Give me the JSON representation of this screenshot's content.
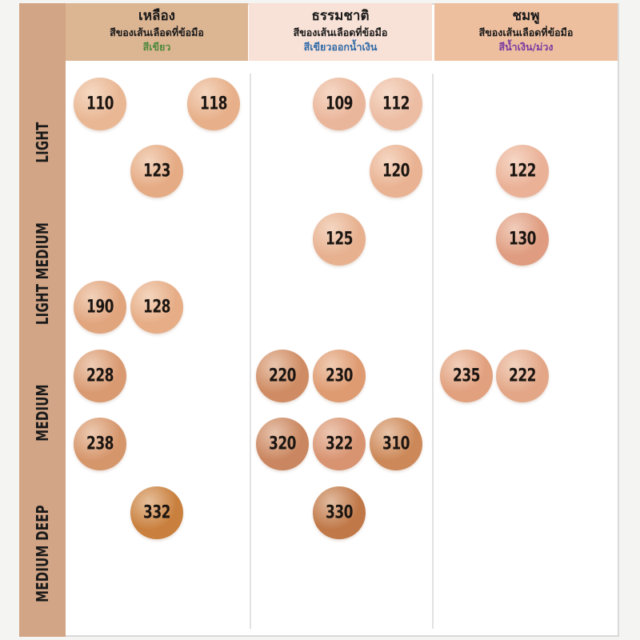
{
  "columns": [
    {
      "id": "yellow",
      "title": "เหลือง",
      "subtitle": "สีของเส้นเลือดที่ข้อมือ",
      "vein": "สีเขียว",
      "bg": "#dcb593",
      "vein_color": "#4e8a3c"
    },
    {
      "id": "neutral",
      "title": "ธรรมชาติ",
      "subtitle": "สีของเส้นเลือดที่ข้อมือ",
      "vein": "สีเขียวออกน้ำเงิน",
      "bg": "#f8e1d6",
      "vein_color": "#2f6aa8"
    },
    {
      "id": "pink",
      "title": "ชมพู",
      "subtitle": "สีของเส้นเลือดที่ข้อมือ",
      "vein": "สีน้ำเงิน/ม่วง",
      "bg": "#eebf9f",
      "vein_color": "#7a3aa0"
    }
  ],
  "rows": [
    {
      "label": "LIGHT"
    },
    {
      "label": "LIGHT MEDIUM"
    },
    {
      "label": "MEDIUM"
    },
    {
      "label": "MEDIUM DEEP"
    }
  ],
  "shades": [
    {
      "code": "110",
      "column": "yellow",
      "tone": "light",
      "color": "#e9b794"
    },
    {
      "code": "118",
      "column": "yellow",
      "tone": "light",
      "color": "#e7b08a"
    },
    {
      "code": "123",
      "column": "yellow",
      "tone": "light",
      "color": "#e5ab84"
    },
    {
      "code": "190",
      "column": "yellow",
      "tone": "light medium",
      "color": "#e1a57e"
    },
    {
      "code": "128",
      "column": "yellow",
      "tone": "light medium",
      "color": "#e6ad86"
    },
    {
      "code": "228",
      "column": "yellow",
      "tone": "medium",
      "color": "#d99a72"
    },
    {
      "code": "238",
      "column": "yellow",
      "tone": "medium",
      "color": "#d6966c"
    },
    {
      "code": "332",
      "column": "yellow",
      "tone": "medium deep",
      "color": "#c9803e"
    },
    {
      "code": "109",
      "column": "neutral",
      "tone": "light",
      "color": "#eab69b"
    },
    {
      "code": "112",
      "column": "neutral",
      "tone": "light",
      "color": "#ecbda3"
    },
    {
      "code": "120",
      "column": "neutral",
      "tone": "light",
      "color": "#e9b292"
    },
    {
      "code": "125",
      "column": "neutral",
      "tone": "light medium",
      "color": "#e7b190"
    },
    {
      "code": "220",
      "column": "neutral",
      "tone": "medium",
      "color": "#cf8c64"
    },
    {
      "code": "230",
      "column": "neutral",
      "tone": "medium",
      "color": "#de9a70"
    },
    {
      "code": "320",
      "column": "neutral",
      "tone": "medium",
      "color": "#ca8660"
    },
    {
      "code": "322",
      "column": "neutral",
      "tone": "medium",
      "color": "#d89371"
    },
    {
      "code": "310",
      "column": "neutral",
      "tone": "medium",
      "color": "#cc8858"
    },
    {
      "code": "330",
      "column": "neutral",
      "tone": "medium deep",
      "color": "#c07848"
    },
    {
      "code": "122",
      "column": "pink",
      "tone": "light",
      "color": "#eab197"
    },
    {
      "code": "130",
      "column": "pink",
      "tone": "light medium",
      "color": "#df9c80"
    },
    {
      "code": "235",
      "column": "pink",
      "tone": "medium",
      "color": "#e1a07e"
    },
    {
      "code": "222",
      "column": "pink",
      "tone": "medium",
      "color": "#e3a788"
    }
  ]
}
